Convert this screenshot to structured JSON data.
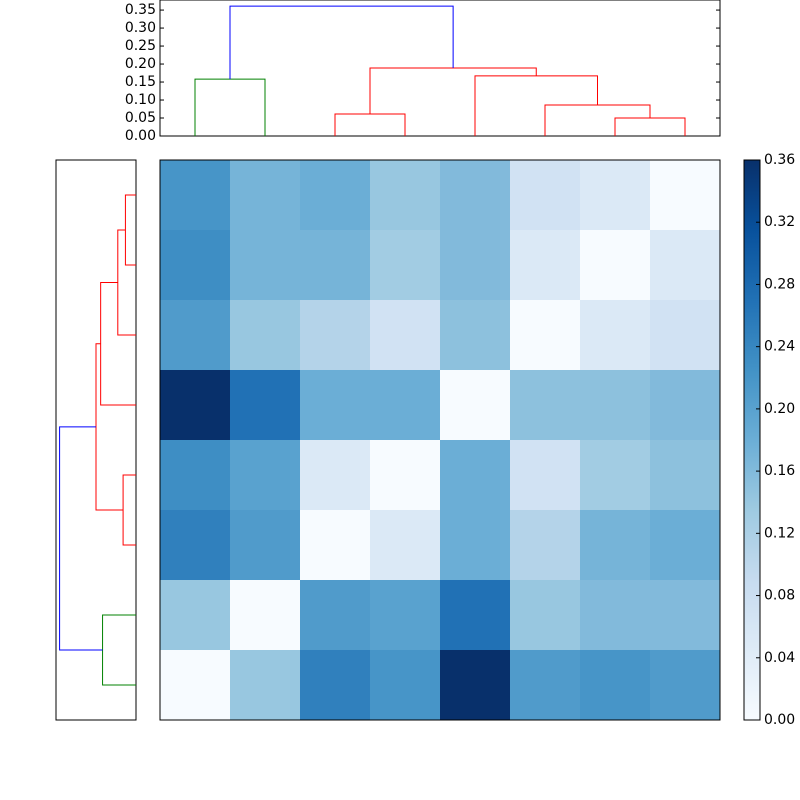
{
  "chart_data": [
    {
      "type": "dendrogram",
      "orientation": "top",
      "merges": [
        {
          "children": [
            6,
            7
          ],
          "height": 0.05,
          "color": "#ff0000"
        },
        {
          "children": [
            2,
            3
          ],
          "height": 0.061,
          "color": "#ff0000"
        },
        {
          "children": [
            5,
            8
          ],
          "height": 0.086,
          "color": "#ff0000"
        },
        {
          "children": [
            0,
            1
          ],
          "height": 0.158,
          "color": "#008000"
        },
        {
          "children": [
            4,
            10
          ],
          "height": 0.167,
          "color": "#ff0000"
        },
        {
          "children": [
            9,
            12
          ],
          "height": 0.189,
          "color": "#ff0000"
        },
        {
          "children": [
            11,
            13
          ],
          "height": 0.361,
          "color": "#0000ff"
        }
      ],
      "ylim": [
        0,
        0.378
      ],
      "yticks": [
        {
          "value": 0,
          "label": "0.00"
        },
        {
          "value": 0.05,
          "label": "0.05"
        },
        {
          "value": 0.1,
          "label": "0.10"
        },
        {
          "value": 0.15,
          "label": "0.15"
        },
        {
          "value": 0.2,
          "label": "0.20"
        },
        {
          "value": 0.25,
          "label": "0.25"
        },
        {
          "value": 0.3,
          "label": "0.30"
        },
        {
          "value": 0.35,
          "label": "0.35"
        }
      ]
    },
    {
      "type": "dendrogram",
      "orientation": "left",
      "merges": [
        {
          "children": [
            0,
            1
          ],
          "height": 0.05,
          "color": "#ff0000"
        },
        {
          "children": [
            8,
            2
          ],
          "height": 0.086,
          "color": "#ff0000"
        },
        {
          "children": [
            9,
            3
          ],
          "height": 0.167,
          "color": "#ff0000"
        },
        {
          "children": [
            4,
            5
          ],
          "height": 0.061,
          "color": "#ff0000"
        },
        {
          "children": [
            10,
            11
          ],
          "height": 0.189,
          "color": "#ff0000"
        },
        {
          "children": [
            6,
            7
          ],
          "height": 0.158,
          "color": "#008000"
        },
        {
          "children": [
            12,
            13
          ],
          "height": 0.361,
          "color": "#0000ff"
        }
      ],
      "xlim": [
        0.378,
        0
      ]
    },
    {
      "type": "heatmap",
      "colormap": "Blues",
      "values": [
        [
          0.22,
          0.17,
          0.18,
          0.14,
          0.16,
          0.07,
          0.05,
          0.0
        ],
        [
          0.23,
          0.17,
          0.17,
          0.13,
          0.16,
          0.05,
          0.0,
          0.05
        ],
        [
          0.21,
          0.14,
          0.11,
          0.07,
          0.15,
          0.0,
          0.05,
          0.07
        ],
        [
          0.36,
          0.27,
          0.18,
          0.18,
          0.0,
          0.15,
          0.15,
          0.16
        ],
        [
          0.23,
          0.2,
          0.05,
          0.0,
          0.18,
          0.07,
          0.13,
          0.15
        ],
        [
          0.25,
          0.21,
          0.0,
          0.05,
          0.18,
          0.11,
          0.17,
          0.18
        ],
        [
          0.14,
          0.0,
          0.21,
          0.2,
          0.27,
          0.14,
          0.16,
          0.16
        ],
        [
          0.0,
          0.14,
          0.25,
          0.22,
          0.36,
          0.21,
          0.22,
          0.21
        ]
      ],
      "clim": [
        0,
        0.36
      ],
      "colorbar_ticks": [
        {
          "value": 0,
          "label": "0.00"
        },
        {
          "value": 0.04,
          "label": "0.04"
        },
        {
          "value": 0.08,
          "label": "0.08"
        },
        {
          "value": 0.12,
          "label": "0.12"
        },
        {
          "value": 0.16,
          "label": "0.16"
        },
        {
          "value": 0.2,
          "label": "0.20"
        },
        {
          "value": 0.24,
          "label": "0.24"
        },
        {
          "value": 0.28,
          "label": "0.28"
        },
        {
          "value": 0.32,
          "label": "0.32"
        },
        {
          "value": 0.36,
          "label": "0.36"
        }
      ]
    }
  ]
}
